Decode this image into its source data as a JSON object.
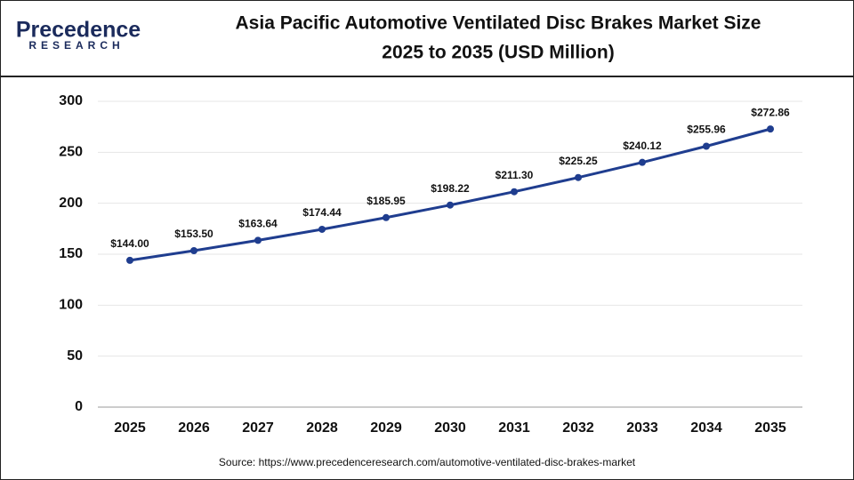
{
  "logo": {
    "name": "Precedence",
    "tagline": "RESEARCH"
  },
  "chart_data": {
    "type": "line",
    "title": [
      "Asia Pacific Automotive Ventilated Disc Brakes Market Size",
      "2025 to 2035 (USD Million)"
    ],
    "categories": [
      "2025",
      "2026",
      "2027",
      "2028",
      "2029",
      "2030",
      "2031",
      "2032",
      "2033",
      "2034",
      "2035"
    ],
    "values": [
      144.0,
      153.5,
      163.64,
      174.44,
      185.95,
      198.22,
      211.3,
      225.25,
      240.12,
      255.96,
      272.86
    ],
    "value_labels": [
      "$144.00",
      "$153.50",
      "$163.64",
      "$174.44",
      "$185.95",
      "$198.22",
      "$211.30",
      "$225.25",
      "$240.12",
      "$255.96",
      "$272.86"
    ],
    "color": "#1f3d8f",
    "ylim": [
      0,
      300
    ],
    "yticks": [
      0,
      50,
      100,
      150,
      200,
      250,
      300
    ],
    "grid": true,
    "source": "Source: https://www.precedenceresearch.com/automotive-ventilated-disc-brakes-market"
  }
}
